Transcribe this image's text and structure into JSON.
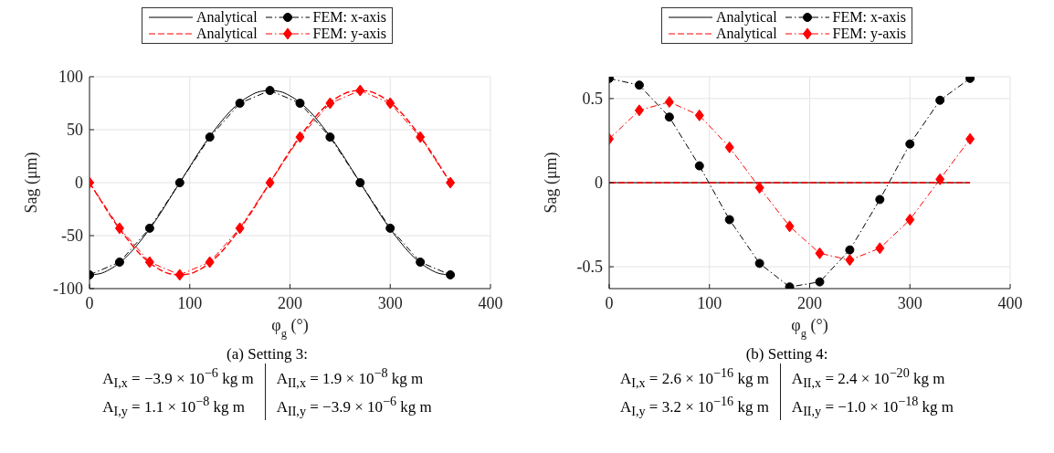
{
  "chart_data": [
    {
      "type": "line",
      "x": [
        0,
        30,
        60,
        90,
        120,
        150,
        180,
        210,
        240,
        270,
        300,
        330,
        360
      ],
      "xlabel": "φ$_{g}$ (°)",
      "ylabel": "Sag (μm)",
      "xlim": [
        0,
        400
      ],
      "xticks": [
        0,
        100,
        200,
        300,
        400
      ],
      "ylim": [
        -100,
        100
      ],
      "yticks": [
        -100,
        -50,
        0,
        50,
        100
      ],
      "grid": true,
      "legend": "top",
      "series": [
        {
          "name": "Analytical",
          "color": "#000000",
          "line_style": "solid",
          "marker": "none",
          "x": [
            0,
            10,
            20,
            40,
            50,
            70,
            80,
            100,
            110,
            130,
            140,
            160,
            170,
            180,
            190,
            200,
            220,
            230,
            250,
            260,
            280,
            290,
            310,
            320,
            340,
            350,
            360
          ],
          "values": [
            -87,
            -86,
            -82,
            -67,
            -56,
            -30,
            -15,
            15,
            30,
            56,
            67,
            82,
            86,
            87,
            86,
            82,
            67,
            56,
            30,
            15,
            -15,
            -30,
            -56,
            -67,
            -82,
            -86,
            -87
          ]
        },
        {
          "name": "FEM: x-axis",
          "color": "#000000",
          "line_style": "dashdot",
          "marker": "circle",
          "values": [
            -87,
            -75,
            -43,
            0,
            43,
            75,
            87,
            75,
            43,
            0,
            -43,
            -75,
            -87
          ]
        },
        {
          "name": "Analytical",
          "color": "#ff0000",
          "line_style": "dashed",
          "marker": "none",
          "x": [
            0,
            10,
            20,
            40,
            50,
            70,
            80,
            90,
            100,
            110,
            130,
            140,
            160,
            170,
            190,
            200,
            220,
            230,
            250,
            260,
            270,
            280,
            290,
            310,
            320,
            340,
            350,
            360
          ],
          "values": [
            0,
            -15,
            -30,
            -56,
            -67,
            -82,
            -86,
            -87,
            -86,
            -82,
            -67,
            -56,
            -30,
            -15,
            15,
            30,
            56,
            67,
            82,
            86,
            87,
            86,
            82,
            67,
            56,
            30,
            15,
            0
          ]
        },
        {
          "name": "FEM: y-axis",
          "color": "#ff0000",
          "line_style": "dashdot",
          "marker": "diamond",
          "values": [
            0,
            -43,
            -75,
            -87,
            -75,
            -43,
            0,
            43,
            75,
            87,
            75,
            43,
            0
          ]
        }
      ],
      "annotations": [
        "(a) Setting 3:",
        "A$_{I,x}$ = −3.9 × 10$^{−6}$ kg m",
        "A$_{II,x}$ = 1.9 × 10$^{−8}$ kg m",
        "A$_{I,y}$ = 1.1 × 10$^{−8}$ kg m",
        "A$_{II,y}$ = −3.9 × 10$^{−6}$ kg m"
      ]
    },
    {
      "type": "line",
      "x": [
        0,
        30,
        60,
        90,
        120,
        150,
        180,
        210,
        240,
        270,
        300,
        330,
        360
      ],
      "xlabel": "φ$_{g}$ (°)",
      "ylabel": "Sag (μm)",
      "xlim": [
        0,
        400
      ],
      "xticks": [
        0,
        100,
        200,
        300,
        400
      ],
      "ylim": [
        -0.63,
        0.63
      ],
      "yticks": [
        -0.5,
        0,
        0.5
      ],
      "grid": true,
      "legend": "top",
      "series": [
        {
          "name": "Analytical",
          "color": "#000000",
          "line_style": "solid",
          "marker": "none",
          "x": [
            0,
            360
          ],
          "values": [
            0,
            0
          ]
        },
        {
          "name": "FEM: x-axis",
          "color": "#000000",
          "line_style": "dashdot",
          "marker": "circle",
          "values": [
            0.62,
            0.58,
            0.39,
            0.1,
            -0.22,
            -0.48,
            -0.62,
            -0.59,
            -0.4,
            -0.1,
            0.23,
            0.49,
            0.62
          ]
        },
        {
          "name": "Analytical",
          "color": "#ff0000",
          "line_style": "dashed",
          "marker": "none",
          "x": [
            0,
            360
          ],
          "values": [
            0,
            0
          ]
        },
        {
          "name": "FEM: y-axis",
          "color": "#ff0000",
          "line_style": "dashdot",
          "marker": "diamond",
          "values": [
            0.26,
            0.43,
            0.48,
            0.4,
            0.21,
            -0.03,
            -0.26,
            -0.42,
            -0.46,
            -0.39,
            -0.22,
            0.02,
            0.26
          ]
        }
      ],
      "annotations": [
        "(b) Setting 4:",
        "A$_{I,x}$ = 2.6 × 10$^{−16}$ kg m",
        "A$_{II,x}$ = 2.4 × 10$^{−20}$ kg m",
        "A$_{I,y}$ = 3.2 × 10$^{−16}$ kg m",
        "A$_{II,y}$ = −1.0 × 10$^{−18}$ kg m"
      ]
    }
  ]
}
